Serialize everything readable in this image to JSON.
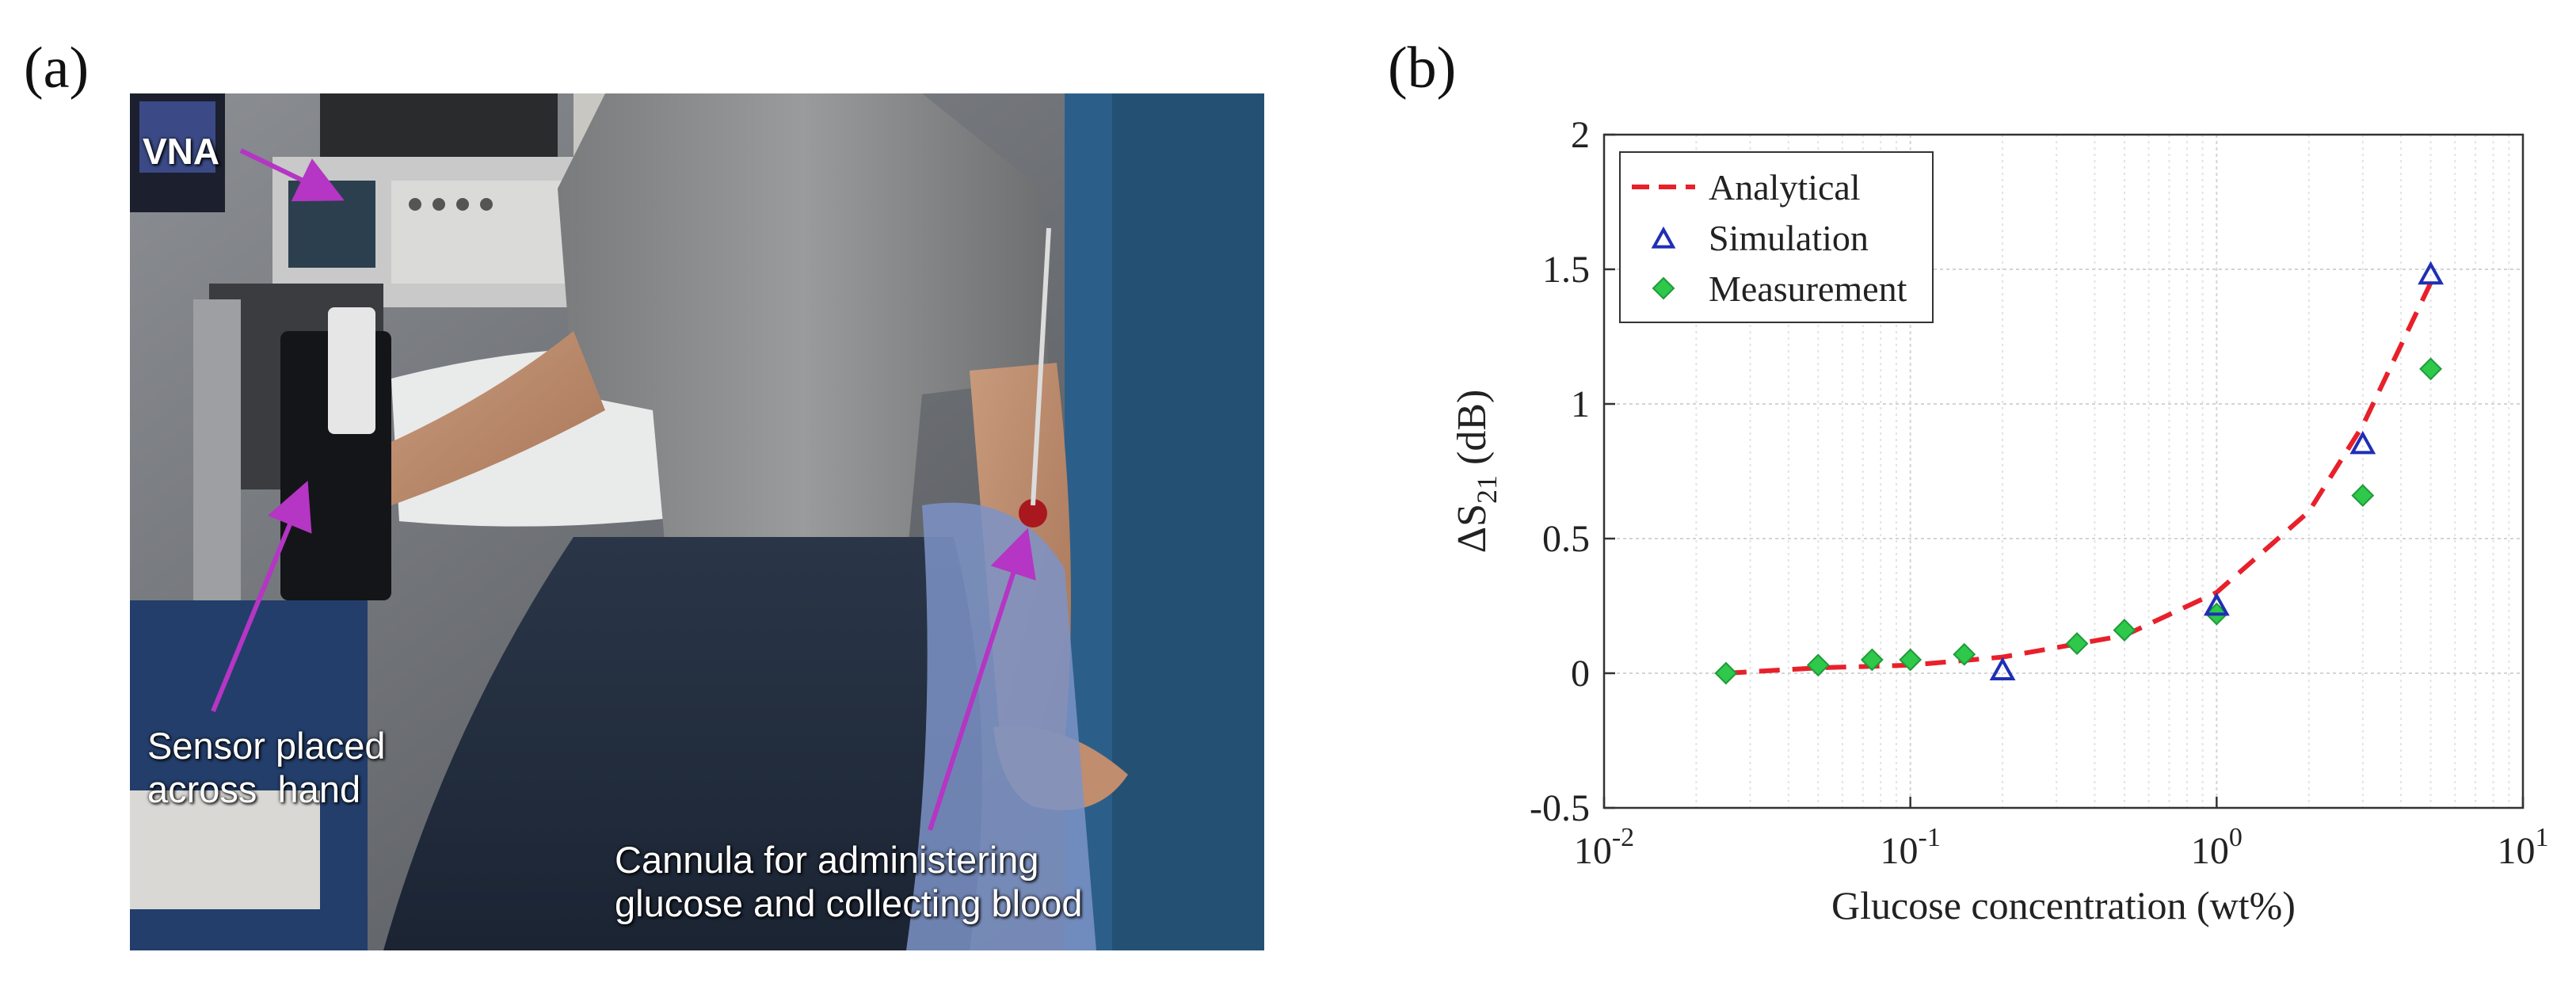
{
  "panels": {
    "a": "(a)",
    "b": "(b)"
  },
  "photo": {
    "captions": {
      "vna": "VNA",
      "sensor_line1": "Sensor placed",
      "sensor_line2": "across  hand",
      "cannula_line1": "Cannula for administering",
      "cannula_line2": "glucose and collecting blood"
    },
    "arrow_color": "#b535c4"
  },
  "chart_data": {
    "type": "scatter",
    "xscale": "log",
    "xlim": [
      0.01,
      10
    ],
    "ylim": [
      -0.5,
      2
    ],
    "xlabel": "Glucose concentration (wt%)",
    "ylabel_main": "ΔS",
    "ylabel_sub": "21",
    "ylabel_unit": "(dB)",
    "x_ticks": [
      {
        "value": 0.01,
        "base": "10",
        "exp": "-2"
      },
      {
        "value": 0.1,
        "base": "10",
        "exp": "-1"
      },
      {
        "value": 1,
        "base": "10",
        "exp": "0"
      },
      {
        "value": 10,
        "base": "10",
        "exp": "1"
      }
    ],
    "y_ticks": [
      {
        "value": -0.5,
        "label": "-0.5"
      },
      {
        "value": 0,
        "label": "0"
      },
      {
        "value": 0.5,
        "label": "0.5"
      },
      {
        "value": 1,
        "label": "1"
      },
      {
        "value": 1.5,
        "label": "1.5"
      },
      {
        "value": 2,
        "label": "2"
      }
    ],
    "grid": true,
    "legend_position": "top-left",
    "series": [
      {
        "name": "Analytical",
        "style": "dashed-line",
        "color": "#e8202a",
        "points": [
          [
            0.025,
            0.0
          ],
          [
            0.05,
            0.02
          ],
          [
            0.1,
            0.03
          ],
          [
            0.2,
            0.06
          ],
          [
            0.5,
            0.14
          ],
          [
            1.0,
            0.3
          ],
          [
            2.0,
            0.6
          ],
          [
            3.0,
            0.92
          ],
          [
            5.0,
            1.45
          ]
        ]
      },
      {
        "name": "Simulation",
        "style": "triangle",
        "color": "#1f2fb5",
        "points": [
          [
            0.2,
            0.01
          ],
          [
            1.0,
            0.25
          ],
          [
            3.0,
            0.85
          ],
          [
            5.0,
            1.48
          ]
        ]
      },
      {
        "name": "Measurement",
        "style": "diamond",
        "color": "#2ec84a",
        "points": [
          [
            0.025,
            0.0
          ],
          [
            0.05,
            0.03
          ],
          [
            0.075,
            0.05
          ],
          [
            0.1,
            0.05
          ],
          [
            0.15,
            0.07
          ],
          [
            0.35,
            0.11
          ],
          [
            0.5,
            0.16
          ],
          [
            1.0,
            0.22
          ],
          [
            3.0,
            0.66
          ],
          [
            5.0,
            1.13
          ]
        ]
      }
    ]
  }
}
